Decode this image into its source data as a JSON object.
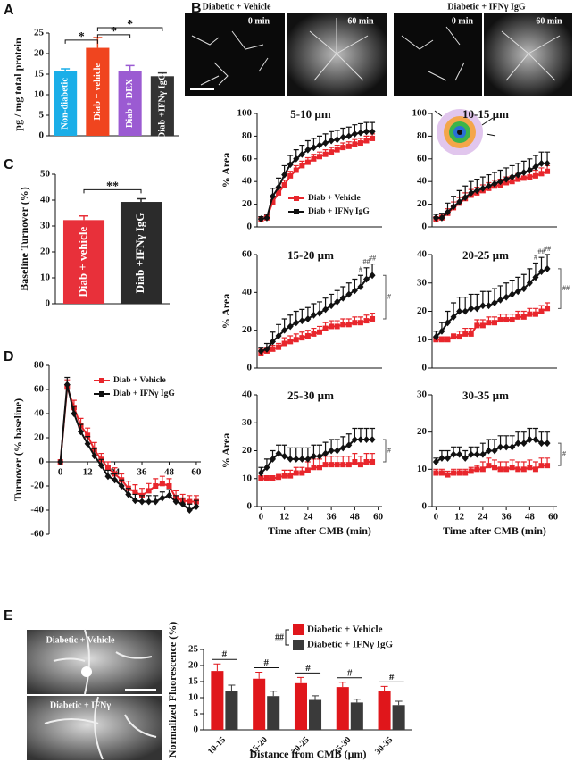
{
  "images_B": {
    "panel": "B",
    "groups": [
      {
        "title": "Diabetic + Vehicle",
        "frames": [
          "0 min",
          "60 min"
        ]
      },
      {
        "title": "Diabetic + IFNγ IgG",
        "frames": [
          "0 min",
          "60 min"
        ]
      }
    ]
  },
  "images_E": {
    "panel": "E",
    "frames": [
      "Diabetic + Vehicle",
      "Diabetic + IFNγ"
    ]
  },
  "chart_data": [
    {
      "type": "bar",
      "panel": "A",
      "ylabel": "pg / mg total protein",
      "categories": [
        "Non-diabetic",
        "Diab + vehicle",
        "Diab + DEX",
        "Diab +IFNγ IgG"
      ],
      "values": [
        15.7,
        21.4,
        15.8,
        14.5
      ],
      "errors": [
        0.6,
        2.5,
        1.3,
        0.8
      ],
      "colors": [
        "#1aaee8",
        "#f0451f",
        "#9b5bd2",
        "#333333"
      ],
      "ylim": [
        0,
        25
      ],
      "yticks": [
        0,
        5,
        10,
        15,
        20,
        25
      ],
      "annotations": [
        "*",
        "*",
        "*"
      ]
    },
    {
      "type": "bar",
      "panel": "C",
      "ylabel": "Baseline Turnover (%)",
      "categories": [
        "Diab + vehicle",
        "Diab +IFNγ IgG"
      ],
      "values": [
        32.3,
        39.3
      ],
      "errors": [
        1.6,
        1.2
      ],
      "colors": [
        "#e8303a",
        "#2b2b2b"
      ],
      "ylim": [
        0,
        50
      ],
      "yticks": [
        0,
        10,
        20,
        30,
        40,
        50
      ],
      "annotations": [
        "**"
      ]
    },
    {
      "type": "line",
      "panel": "D",
      "ylabel": "Turnover (% baseline)",
      "legend": true,
      "x": [
        0,
        3,
        6,
        9,
        12,
        15,
        18,
        21,
        24,
        27,
        30,
        33,
        36,
        39,
        42,
        45,
        48,
        51,
        54,
        57,
        60
      ],
      "xlim": [
        -5,
        62
      ],
      "xticks": [
        0,
        12,
        24,
        36,
        48,
        60
      ],
      "ylim": [
        -60,
        80
      ],
      "yticks": [
        -60,
        -40,
        -20,
        0,
        20,
        40,
        60,
        80
      ],
      "series": [
        {
          "name": "Diab + Vehicle",
          "color": "#e8262c",
          "marker": "square",
          "values": [
            0,
            62,
            45,
            30,
            22,
            10,
            2,
            -5,
            -10,
            -15,
            -22,
            -25,
            -28,
            -24,
            -20,
            -18,
            -20,
            -30,
            -32,
            -33,
            -33
          ],
          "errors": [
            0,
            6,
            6,
            6,
            6,
            6,
            5,
            5,
            5,
            5,
            6,
            6,
            6,
            6,
            6,
            6,
            6,
            6,
            5,
            5,
            5
          ]
        },
        {
          "name": "Diab + IFNγ IgG",
          "color": "#111111",
          "marker": "diamond",
          "values": [
            0,
            64,
            40,
            25,
            15,
            5,
            -3,
            -12,
            -15,
            -20,
            -27,
            -32,
            -33,
            -33,
            -33,
            -30,
            -28,
            -33,
            -35,
            -40,
            -37
          ],
          "errors": [
            0,
            6,
            6,
            6,
            6,
            6,
            5,
            5,
            5,
            5,
            5,
            5,
            5,
            5,
            5,
            5,
            5,
            5,
            5,
            5,
            5
          ]
        }
      ]
    },
    {
      "type": "line",
      "title": "5-10 µm",
      "ylabel": "% Area",
      "legend": true,
      "x": [
        0,
        3,
        6,
        9,
        12,
        15,
        18,
        21,
        24,
        27,
        30,
        33,
        36,
        39,
        42,
        45,
        48,
        51,
        54,
        57
      ],
      "xlim": [
        -2,
        62
      ],
      "ylim": [
        0,
        100
      ],
      "yticks": [
        0,
        20,
        40,
        60,
        80,
        100
      ],
      "series": [
        {
          "name": "Diab + Vehicle",
          "color": "#e8262c",
          "marker": "square",
          "values": [
            7,
            8,
            22,
            30,
            37,
            45,
            50,
            54,
            57,
            60,
            62,
            64,
            66,
            68,
            70,
            71,
            73,
            74,
            76,
            78
          ],
          "errors": [
            2,
            2,
            4,
            4,
            4,
            4,
            4,
            4,
            4,
            4,
            4,
            4,
            4,
            4,
            4,
            4,
            4,
            4,
            4,
            4
          ]
        },
        {
          "name": "Diab + IFNγ IgG",
          "color": "#111111",
          "marker": "diamond",
          "values": [
            7,
            8,
            27,
            35,
            46,
            55,
            60,
            64,
            68,
            70,
            72,
            74,
            76,
            77,
            79,
            80,
            82,
            83,
            84,
            84
          ],
          "errors": [
            2,
            3,
            7,
            8,
            8,
            8,
            8,
            8,
            8,
            8,
            8,
            8,
            8,
            8,
            8,
            8,
            8,
            8,
            8,
            8
          ]
        }
      ]
    },
    {
      "type": "line",
      "title": "10-15 µm",
      "x": [
        0,
        3,
        6,
        9,
        12,
        15,
        18,
        21,
        24,
        27,
        30,
        33,
        36,
        39,
        42,
        45,
        48,
        51,
        54,
        57
      ],
      "xlim": [
        -2,
        62
      ],
      "ylim": [
        0,
        100
      ],
      "yticks": [
        0,
        20,
        40,
        60,
        80,
        100
      ],
      "series": [
        {
          "color": "#e8262c",
          "marker": "square",
          "values": [
            7,
            8,
            12,
            17,
            21,
            25,
            28,
            30,
            32,
            34,
            36,
            37,
            39,
            40,
            42,
            43,
            44,
            45,
            47,
            49
          ],
          "errors": [
            2,
            3,
            4,
            5,
            5,
            5,
            5,
            5,
            5,
            5,
            5,
            5,
            5,
            5,
            5,
            5,
            5,
            5,
            5,
            5
          ]
        },
        {
          "color": "#111111",
          "marker": "diamond",
          "values": [
            8,
            8,
            13,
            18,
            22,
            26,
            30,
            32,
            34,
            36,
            38,
            40,
            42,
            44,
            46,
            48,
            50,
            53,
            56,
            56
          ],
          "errors": [
            3,
            4,
            8,
            9,
            10,
            10,
            10,
            10,
            10,
            10,
            10,
            10,
            10,
            10,
            10,
            10,
            10,
            10,
            10,
            10
          ]
        }
      ]
    },
    {
      "type": "line",
      "title": "15-20 µm",
      "ylabel": "% Area",
      "x": [
        0,
        3,
        6,
        9,
        12,
        15,
        18,
        21,
        24,
        27,
        30,
        33,
        36,
        39,
        42,
        45,
        48,
        51,
        54,
        57
      ],
      "xlim": [
        -2,
        62
      ],
      "ylim": [
        0,
        60
      ],
      "yticks": [
        0,
        20,
        40,
        60
      ],
      "annotations": [
        "#",
        "##",
        "##",
        "#"
      ],
      "series": [
        {
          "color": "#e8262c",
          "marker": "square",
          "values": [
            8,
            9,
            10,
            11,
            13,
            14,
            15,
            16,
            17,
            18,
            19,
            21,
            22,
            22,
            23,
            23,
            24,
            24,
            25,
            26
          ],
          "errors": [
            2,
            2,
            2,
            2,
            3,
            3,
            3,
            3,
            3,
            3,
            3,
            3,
            3,
            3,
            3,
            3,
            3,
            3,
            3,
            3
          ]
        },
        {
          "color": "#111111",
          "marker": "diamond",
          "values": [
            9,
            10,
            14,
            17,
            20,
            22,
            24,
            25,
            26,
            28,
            29,
            31,
            33,
            35,
            37,
            39,
            41,
            43,
            47,
            49
          ],
          "errors": [
            2,
            3,
            5,
            6,
            6,
            6,
            6,
            6,
            6,
            6,
            6,
            6,
            6,
            6,
            6,
            6,
            6,
            6,
            6,
            6
          ]
        }
      ]
    },
    {
      "type": "line",
      "title": "20-25 µm",
      "x": [
        0,
        3,
        6,
        9,
        12,
        15,
        18,
        21,
        24,
        27,
        30,
        33,
        36,
        39,
        42,
        45,
        48,
        51,
        54,
        57
      ],
      "xlim": [
        -2,
        62
      ],
      "ylim": [
        0,
        40
      ],
      "yticks": [
        0,
        10,
        20,
        30,
        40
      ],
      "annotations": [
        "#",
        "##",
        "##",
        "##"
      ],
      "series": [
        {
          "color": "#e8262c",
          "marker": "square",
          "values": [
            10,
            10,
            10,
            11,
            11,
            12,
            12,
            15,
            15,
            16,
            16,
            17,
            17,
            17,
            18,
            18,
            19,
            19,
            20,
            21
          ],
          "errors": [
            1,
            1,
            1,
            1,
            2,
            2,
            2,
            2,
            2,
            2,
            2,
            2,
            2,
            2,
            2,
            2,
            2,
            2,
            2,
            2
          ]
        },
        {
          "color": "#111111",
          "marker": "diamond",
          "values": [
            11,
            13,
            16,
            18,
            20,
            20,
            21,
            21,
            22,
            22,
            23,
            24,
            25,
            26,
            27,
            28,
            30,
            32,
            34,
            35
          ],
          "errors": [
            2,
            3,
            4,
            5,
            5,
            5,
            5,
            5,
            5,
            5,
            5,
            5,
            5,
            5,
            5,
            5,
            5,
            5,
            5,
            5
          ]
        }
      ]
    },
    {
      "type": "line",
      "title": "25-30 µm",
      "ylabel": "% Area",
      "xlabel": "Time after CMB (min)",
      "x": [
        0,
        3,
        6,
        9,
        12,
        15,
        18,
        21,
        24,
        27,
        30,
        33,
        36,
        39,
        42,
        45,
        48,
        51,
        54,
        57
      ],
      "xlim": [
        -2,
        62
      ],
      "xticks": [
        0,
        12,
        24,
        36,
        48,
        60
      ],
      "ylim": [
        0,
        40
      ],
      "yticks": [
        0,
        10,
        20,
        30,
        40
      ],
      "annotations": [
        "#"
      ],
      "series": [
        {
          "color": "#e8262c",
          "marker": "square",
          "values": [
            10,
            10,
            10,
            10.5,
            11,
            11,
            12,
            12,
            13,
            14,
            14,
            15,
            15,
            15,
            15,
            15,
            16,
            15,
            16,
            16
          ],
          "errors": [
            1,
            1,
            1,
            1,
            2,
            2,
            2,
            2,
            3,
            3,
            3,
            3,
            3,
            3,
            3,
            3,
            3,
            3,
            3,
            3
          ]
        },
        {
          "color": "#111111",
          "marker": "diamond",
          "values": [
            12,
            14,
            17,
            19,
            18,
            17,
            17,
            17,
            17,
            18,
            18,
            19,
            20,
            20,
            21,
            22,
            24,
            24,
            24,
            24
          ],
          "errors": [
            2,
            3,
            3,
            3,
            4,
            4,
            4,
            4,
            4,
            4,
            4,
            4,
            4,
            4,
            4,
            4,
            4,
            4,
            4,
            4
          ]
        }
      ]
    },
    {
      "type": "line",
      "title": "30-35 µm",
      "xlabel": "Time after CMB (min)",
      "x": [
        0,
        3,
        6,
        9,
        12,
        15,
        18,
        21,
        24,
        27,
        30,
        33,
        36,
        39,
        42,
        45,
        48,
        51,
        54,
        57
      ],
      "xlim": [
        -2,
        62
      ],
      "xticks": [
        0,
        12,
        24,
        36,
        48,
        60
      ],
      "ylim": [
        0,
        30
      ],
      "yticks": [
        0,
        10,
        20,
        30
      ],
      "annotations": [
        "#"
      ],
      "series": [
        {
          "color": "#e8262c",
          "marker": "square",
          "values": [
            9,
            9,
            8.5,
            9,
            9,
            9,
            9.5,
            10,
            10,
            11,
            10.5,
            10,
            10,
            10.5,
            10,
            10,
            10.5,
            10,
            11,
            11
          ],
          "errors": [
            1,
            1,
            1,
            1,
            1,
            1,
            1,
            1,
            2,
            2,
            2,
            2,
            2,
            2,
            2,
            2,
            2,
            2,
            2,
            2
          ]
        },
        {
          "color": "#111111",
          "marker": "diamond",
          "values": [
            12,
            13,
            13,
            14,
            14,
            13,
            14,
            14,
            14,
            15,
            15,
            16,
            16,
            16,
            17,
            17,
            18,
            18,
            17,
            17
          ],
          "errors": [
            1,
            2,
            2,
            2,
            2,
            2,
            2,
            2,
            3,
            3,
            3,
            3,
            3,
            3,
            3,
            3,
            3,
            3,
            3,
            3
          ]
        }
      ]
    },
    {
      "type": "grouped_bar",
      "ylabel": "Normalized Fluorescence (%)",
      "xlabel": "Distance from CMB (µm)",
      "legend": true,
      "legend_annotation": "##",
      "categories": [
        "10-15",
        "15-20",
        "20-25",
        "25-30",
        "30-35"
      ],
      "ylim": [
        0,
        25
      ],
      "yticks": [
        0,
        5,
        10,
        15,
        20,
        25
      ],
      "annotations": [
        "#",
        "#",
        "#",
        "#",
        "#"
      ],
      "series": [
        {
          "name": "Diabetic + Vehicle",
          "color": "#e0161b",
          "values": [
            18.3,
            15.9,
            14.5,
            13.3,
            12.2
          ],
          "errors": [
            2.2,
            2.0,
            1.8,
            1.5,
            1.3
          ]
        },
        {
          "name": "Diabetic + IFNγ IgG",
          "color": "#3a3a3a",
          "values": [
            12.1,
            10.5,
            9.3,
            8.5,
            7.7
          ],
          "errors": [
            1.8,
            1.5,
            1.3,
            1.0,
            1.2
          ]
        }
      ]
    }
  ]
}
